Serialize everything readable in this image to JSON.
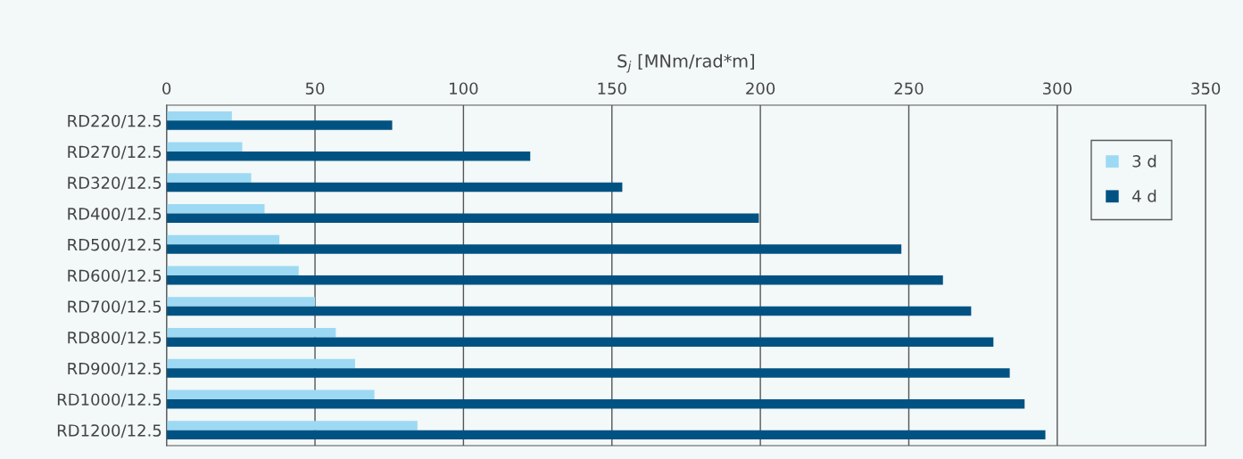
{
  "chart_data": {
    "type": "bar",
    "orientation": "horizontal",
    "xlabel": "S$_{j}$ [MNm/rad*m]",
    "categories": [
      "RD220/12.5",
      "RD270/12.5",
      "RD320/12.5",
      "RD400/12.5",
      "RD500/12.5",
      "RD600/12.5",
      "RD700/12.5",
      "RD800/12.5",
      "RD900/12.5",
      "RD1000/12.5",
      "RD1200/12.5"
    ],
    "series": [
      {
        "name": "3 d",
        "color": "#9dd9f3",
        "values": [
          22,
          25.5,
          28.5,
          33,
          38,
          44.5,
          50,
          57,
          63.5,
          70,
          84.5
        ]
      },
      {
        "name": "4 d",
        "color": "#005282",
        "values": [
          76,
          122.5,
          153.5,
          199.5,
          247.5,
          261.5,
          271,
          278.5,
          284,
          289,
          296
        ]
      }
    ],
    "xlim": [
      0,
      350
    ],
    "xticks": [
      0,
      50,
      100,
      150,
      200,
      250,
      300,
      350
    ],
    "grid": "x",
    "legend": "right"
  }
}
